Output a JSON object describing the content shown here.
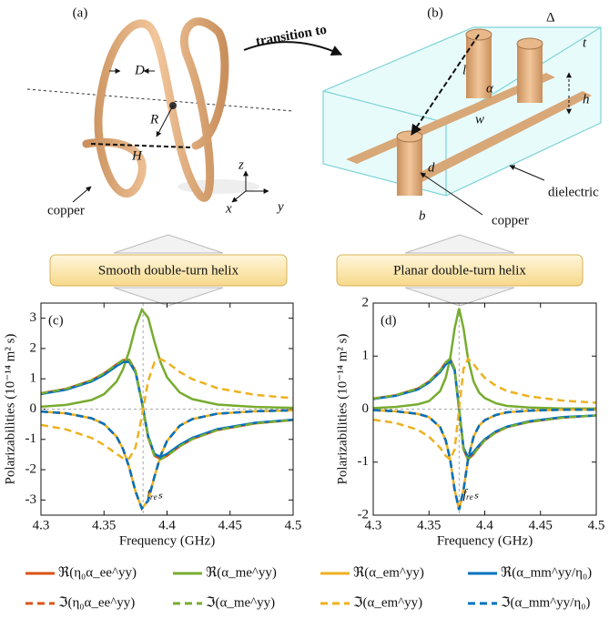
{
  "figure": {
    "panels": [
      "(a)",
      "(b)"
    ],
    "arrow_label": "transition to",
    "labels_a": [
      "D",
      "R",
      "H",
      "z",
      "x",
      "y",
      "copper"
    ],
    "labels_b": [
      "Δ",
      "t",
      "l",
      "α",
      "h",
      "w",
      "d",
      "dielectric",
      "b",
      "copper"
    ],
    "banners": [
      "Smooth double-turn helix",
      "Planar double-turn helix"
    ]
  },
  "chart_data": [
    {
      "type": "line",
      "panel": "(c)",
      "xlabel": "Frequency (GHz)",
      "ylabel": "Polarizabilities (10⁻¹⁴ m² s)",
      "annotation": {
        "text": "fᵣₑₛ",
        "x": 4.381
      },
      "x": [
        4.3,
        4.32,
        4.34,
        4.35,
        4.36,
        4.365,
        4.37,
        4.375,
        4.38,
        4.385,
        4.39,
        4.395,
        4.4,
        4.41,
        4.42,
        4.44,
        4.47,
        4.5
      ],
      "xlim": [
        4.3,
        4.5
      ],
      "xticks": [
        4.3,
        4.35,
        4.4,
        4.45,
        4.5
      ],
      "ylim": [
        -3.5,
        3.5
      ],
      "yticks": [
        -3,
        -2,
        -1,
        0,
        1,
        2,
        3
      ],
      "series": [
        {
          "name": "ℜ(η₀α_ee^yy)",
          "color": "#d95319",
          "dash": false,
          "values": [
            0.52,
            0.67,
            0.95,
            1.18,
            1.48,
            1.62,
            1.63,
            1.26,
            0.25,
            -0.93,
            -1.54,
            -1.65,
            -1.54,
            -1.23,
            -0.99,
            -0.69,
            -0.47,
            -0.36
          ]
        },
        {
          "name": "ℜ(α_me^yy)",
          "color": "#77ac30",
          "dash": false,
          "values": [
            0.08,
            0.14,
            0.3,
            0.49,
            0.91,
            1.31,
            1.92,
            2.72,
            3.28,
            3.02,
            2.23,
            1.53,
            1.05,
            0.55,
            0.33,
            0.15,
            0.07,
            0.04
          ]
        },
        {
          "name": "ℜ(α_em^yy)",
          "color": "#edb120",
          "dash": false,
          "values": [
            -0.08,
            -0.14,
            -0.3,
            -0.49,
            -0.91,
            -1.31,
            -1.92,
            -2.72,
            -3.28,
            -3.02,
            -2.23,
            -1.53,
            -1.05,
            -0.55,
            -0.33,
            -0.15,
            -0.07,
            -0.04
          ]
        },
        {
          "name": "ℜ(α_mm^yy/η₀)",
          "color": "#0072bd",
          "dash": false,
          "values": [
            0.5,
            0.64,
            0.91,
            1.13,
            1.42,
            1.55,
            1.56,
            1.21,
            0.24,
            -0.89,
            -1.48,
            -1.58,
            -1.48,
            -1.18,
            -0.95,
            -0.66,
            -0.45,
            -0.35
          ]
        },
        {
          "name": "ℑ(η₀α_ee^yy)",
          "color": "#d95319",
          "dash": true,
          "values": [
            -0.08,
            -0.14,
            -0.3,
            -0.49,
            -0.91,
            -1.31,
            -1.92,
            -2.72,
            -3.28,
            -3.02,
            -2.23,
            -1.53,
            -1.05,
            -0.55,
            -0.33,
            -0.15,
            -0.07,
            -0.04
          ]
        },
        {
          "name": "ℑ(α_me^yy)",
          "color": "#77ac30",
          "dash": true,
          "values": [
            0.52,
            0.67,
            0.95,
            1.18,
            1.48,
            1.62,
            1.63,
            1.26,
            0.25,
            -0.93,
            -1.54,
            -1.65,
            -1.54,
            -1.23,
            -0.99,
            -0.69,
            -0.47,
            -0.36
          ]
        },
        {
          "name": "ℑ(α_em^yy)",
          "color": "#edb120",
          "dash": true,
          "values": [
            -0.52,
            -0.67,
            -0.95,
            -1.18,
            -1.48,
            -1.62,
            -1.63,
            -1.26,
            -0.25,
            0.93,
            1.54,
            1.65,
            1.54,
            1.23,
            0.99,
            0.69,
            0.47,
            0.36
          ]
        },
        {
          "name": "ℑ(α_mm^yy/η₀)",
          "color": "#0072bd",
          "dash": true,
          "values": [
            -0.08,
            -0.14,
            -0.3,
            -0.49,
            -0.91,
            -1.31,
            -1.92,
            -2.72,
            -3.28,
            -3.02,
            -2.23,
            -1.53,
            -1.05,
            -0.55,
            -0.33,
            -0.15,
            -0.07,
            -0.04
          ]
        }
      ]
    },
    {
      "type": "line",
      "panel": "(d)",
      "xlabel": "Frequency (GHz)",
      "ylabel": "Polarizabilities (10⁻¹⁴ m² s)",
      "annotation": {
        "text": "fᵣₑₛ",
        "x": 4.377
      },
      "x": [
        4.3,
        4.32,
        4.34,
        4.35,
        4.36,
        4.365,
        4.369,
        4.373,
        4.377,
        4.381,
        4.385,
        4.39,
        4.395,
        4.4,
        4.41,
        4.42,
        4.44,
        4.47,
        4.5
      ],
      "xlim": [
        4.3,
        4.5
      ],
      "xticks": [
        4.3,
        4.35,
        4.4,
        4.45,
        4.5
      ],
      "ylim": [
        -2,
        2
      ],
      "yticks": [
        -2,
        -1,
        0,
        1,
        2
      ],
      "series": [
        {
          "color": "#d95319",
          "dash": false,
          "values": [
            0.2,
            0.26,
            0.39,
            0.52,
            0.73,
            0.88,
            0.95,
            0.76,
            0,
            -0.76,
            -0.95,
            -0.85,
            -0.71,
            -0.59,
            -0.44,
            -0.34,
            -0.24,
            -0.16,
            -0.12
          ]
        },
        {
          "color": "#77ac30",
          "dash": false,
          "values": [
            0.02,
            0.04,
            0.09,
            0.15,
            0.34,
            0.59,
            0.95,
            1.52,
            1.9,
            1.52,
            0.95,
            0.52,
            0.31,
            0.21,
            0.11,
            0.06,
            0.03,
            0.01,
            0.01
          ]
        },
        {
          "color": "#edb120",
          "dash": false,
          "values": [
            -0.02,
            -0.04,
            -0.09,
            -0.15,
            -0.34,
            -0.59,
            -0.95,
            -1.52,
            -1.9,
            -1.52,
            -0.95,
            -0.52,
            -0.31,
            -0.21,
            -0.11,
            -0.06,
            -0.03,
            -0.01,
            -0.01
          ]
        },
        {
          "color": "#0072bd",
          "dash": false,
          "values": [
            0.19,
            0.25,
            0.37,
            0.5,
            0.7,
            0.84,
            0.91,
            0.73,
            0,
            -0.73,
            -0.91,
            -0.81,
            -0.68,
            -0.57,
            -0.42,
            -0.33,
            -0.23,
            -0.15,
            -0.12
          ]
        },
        {
          "color": "#d95319",
          "dash": true,
          "values": [
            -0.02,
            -0.04,
            -0.09,
            -0.15,
            -0.34,
            -0.59,
            -0.95,
            -1.52,
            -1.9,
            -1.52,
            -0.95,
            -0.52,
            -0.31,
            -0.21,
            -0.11,
            -0.06,
            -0.03,
            -0.01,
            -0.01
          ]
        },
        {
          "color": "#77ac30",
          "dash": true,
          "values": [
            0.2,
            0.26,
            0.39,
            0.52,
            0.73,
            0.88,
            0.95,
            0.76,
            0,
            -0.76,
            -0.95,
            -0.85,
            -0.71,
            -0.59,
            -0.44,
            -0.34,
            -0.24,
            -0.16,
            -0.12
          ]
        },
        {
          "color": "#edb120",
          "dash": true,
          "values": [
            -0.2,
            -0.26,
            -0.39,
            -0.52,
            -0.73,
            -0.88,
            -0.95,
            -0.76,
            0,
            0.76,
            0.95,
            0.85,
            0.71,
            0.59,
            0.44,
            0.34,
            0.24,
            0.16,
            0.12
          ]
        },
        {
          "color": "#0072bd",
          "dash": true,
          "values": [
            -0.02,
            -0.04,
            -0.09,
            -0.15,
            -0.34,
            -0.59,
            -0.95,
            -1.52,
            -1.9,
            -1.52,
            -0.95,
            -0.52,
            -0.31,
            -0.21,
            -0.11,
            -0.06,
            -0.03,
            -0.01,
            -0.01
          ]
        }
      ]
    }
  ]
}
